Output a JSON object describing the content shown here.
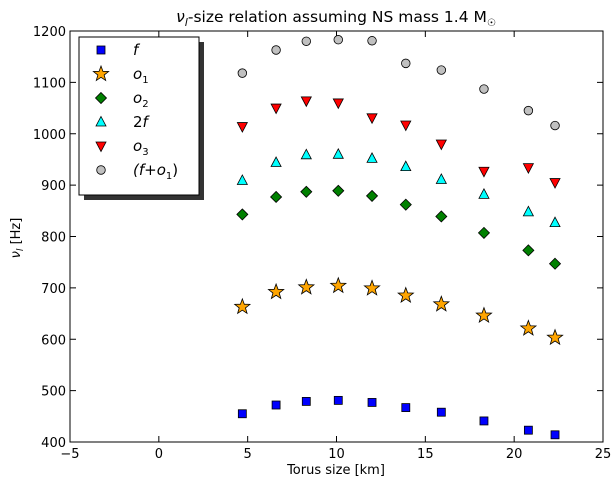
{
  "chart_data": {
    "type": "scatter",
    "title": "νₗ-size relation assuming NS mass 1.4 M☉",
    "title_parts": {
      "nu": "ν",
      "sub": "l",
      "rest": "-size relation assuming NS mass 1.4 M",
      "sun": "☉"
    },
    "xlabel": "Torus size [km]",
    "ylabel": "νₗ [Hz]",
    "ylabel_parts": {
      "nu": "ν",
      "sub": "l",
      "rest": " [Hz]"
    },
    "xlim": [
      -5,
      25
    ],
    "ylim": [
      400,
      1200
    ],
    "xticks": [
      -5,
      0,
      5,
      10,
      15,
      20,
      25
    ],
    "yticks": [
      400,
      500,
      600,
      700,
      800,
      900,
      1000,
      1100,
      1200
    ],
    "grid": false,
    "legend_position": "top-left",
    "x": [
      4.7,
      6.6,
      8.3,
      10.1,
      12.0,
      13.9,
      15.9,
      18.3,
      20.8,
      22.3
    ],
    "series": [
      {
        "name": "f",
        "name_parts": [
          "f"
        ],
        "marker": "square",
        "color": "#0000ff",
        "values": [
          455,
          472,
          479,
          481,
          477,
          467,
          458,
          441,
          423,
          414
        ]
      },
      {
        "name": "o₁",
        "name_parts": [
          "o",
          "1"
        ],
        "marker": "star",
        "color": "#ffa500",
        "values": [
          663,
          692,
          701,
          704,
          699,
          685,
          668,
          646,
          621,
          603
        ]
      },
      {
        "name": "o₂",
        "name_parts": [
          "o",
          "2"
        ],
        "marker": "diamond",
        "color": "#008000",
        "values": [
          843,
          877,
          887,
          889,
          879,
          862,
          839,
          807,
          773,
          747
        ]
      },
      {
        "name": "2f",
        "name_parts": [
          "2",
          "f"
        ],
        "marker": "triangle-up",
        "color": "#00ffff",
        "values": [
          909,
          944,
          959,
          960,
          952,
          936,
          911,
          882,
          848,
          827
        ]
      },
      {
        "name": "o₃",
        "name_parts": [
          "o",
          "3"
        ],
        "marker": "triangle-down",
        "color": "#ff0000",
        "values": [
          1014,
          1050,
          1064,
          1060,
          1031,
          1017,
          980,
          927,
          934,
          905
        ]
      },
      {
        "name": "(f+o₁)",
        "name_parts": [
          "(f+o",
          "1",
          ")"
        ],
        "marker": "circle",
        "color": "#c0c0c0",
        "values": [
          1118,
          1163,
          1180,
          1183,
          1181,
          1137,
          1124,
          1087,
          1045,
          1016
        ]
      }
    ]
  }
}
